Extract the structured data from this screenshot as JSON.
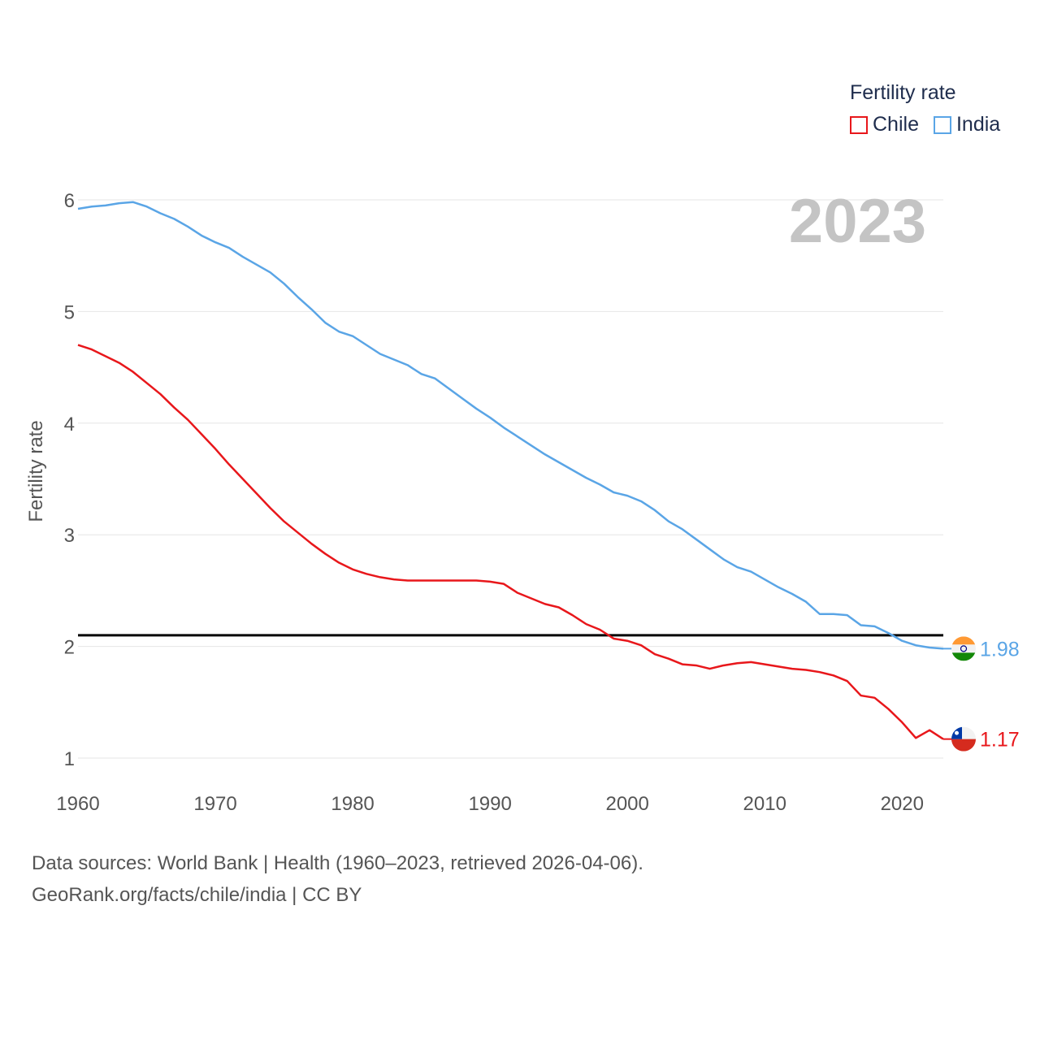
{
  "legend": {
    "title": "Fertility rate",
    "items": [
      {
        "name": "Chile",
        "color": "#e8171b"
      },
      {
        "name": "India",
        "color": "#5aa5e6"
      }
    ]
  },
  "sources": {
    "line1": "Data sources: World Bank | Health (1960–2023, retrieved 2026-04-06).",
    "line2": "GeoRank.org/facts/chile/india | CC BY"
  },
  "chart_data": {
    "type": "line",
    "title": "Fertility rate",
    "ylabel": "Fertility rate",
    "xlabel": "",
    "current_year_label": "2023",
    "xlim": [
      1960,
      2023
    ],
    "ylim": [
      1,
      6
    ],
    "x_ticks": [
      1960,
      1970,
      1980,
      1990,
      2000,
      2010,
      2020
    ],
    "y_ticks": [
      1,
      2,
      3,
      4,
      5,
      6
    ],
    "reference_line": 2.1,
    "grid": true,
    "legend_position": "top-right",
    "x": [
      1960,
      1961,
      1962,
      1963,
      1964,
      1965,
      1966,
      1967,
      1968,
      1969,
      1970,
      1971,
      1972,
      1973,
      1974,
      1975,
      1976,
      1977,
      1978,
      1979,
      1980,
      1981,
      1982,
      1983,
      1984,
      1985,
      1986,
      1987,
      1988,
      1989,
      1990,
      1991,
      1992,
      1993,
      1994,
      1995,
      1996,
      1997,
      1998,
      1999,
      2000,
      2001,
      2002,
      2003,
      2004,
      2005,
      2006,
      2007,
      2008,
      2009,
      2010,
      2011,
      2012,
      2013,
      2014,
      2015,
      2016,
      2017,
      2018,
      2019,
      2020,
      2021,
      2022,
      2023
    ],
    "series": [
      {
        "name": "Chile",
        "color": "#e8171b",
        "end_label": "1.17",
        "flag": "chile-flag",
        "values": [
          4.7,
          4.66,
          4.6,
          4.54,
          4.46,
          4.36,
          4.26,
          4.14,
          4.03,
          3.9,
          3.77,
          3.63,
          3.5,
          3.37,
          3.24,
          3.12,
          3.02,
          2.92,
          2.83,
          2.75,
          2.69,
          2.65,
          2.62,
          2.6,
          2.59,
          2.59,
          2.59,
          2.59,
          2.59,
          2.59,
          2.58,
          2.56,
          2.48,
          2.43,
          2.38,
          2.35,
          2.28,
          2.2,
          2.15,
          2.07,
          2.05,
          2.01,
          1.93,
          1.89,
          1.84,
          1.83,
          1.8,
          1.83,
          1.85,
          1.86,
          1.84,
          1.82,
          1.8,
          1.79,
          1.77,
          1.74,
          1.69,
          1.56,
          1.54,
          1.44,
          1.32,
          1.18,
          1.25,
          1.17
        ]
      },
      {
        "name": "India",
        "color": "#5aa5e6",
        "end_label": "1.98",
        "flag": "india-flag",
        "values": [
          5.92,
          5.94,
          5.95,
          5.97,
          5.98,
          5.94,
          5.88,
          5.83,
          5.76,
          5.68,
          5.62,
          5.57,
          5.49,
          5.42,
          5.35,
          5.25,
          5.13,
          5.02,
          4.9,
          4.82,
          4.78,
          4.7,
          4.62,
          4.57,
          4.52,
          4.44,
          4.4,
          4.31,
          4.22,
          4.13,
          4.05,
          3.96,
          3.88,
          3.8,
          3.72,
          3.65,
          3.58,
          3.51,
          3.45,
          3.38,
          3.35,
          3.3,
          3.22,
          3.12,
          3.05,
          2.96,
          2.87,
          2.78,
          2.71,
          2.67,
          2.6,
          2.53,
          2.47,
          2.4,
          2.29,
          2.29,
          2.28,
          2.19,
          2.18,
          2.12,
          2.05,
          2.01,
          1.99,
          1.98
        ]
      }
    ]
  }
}
